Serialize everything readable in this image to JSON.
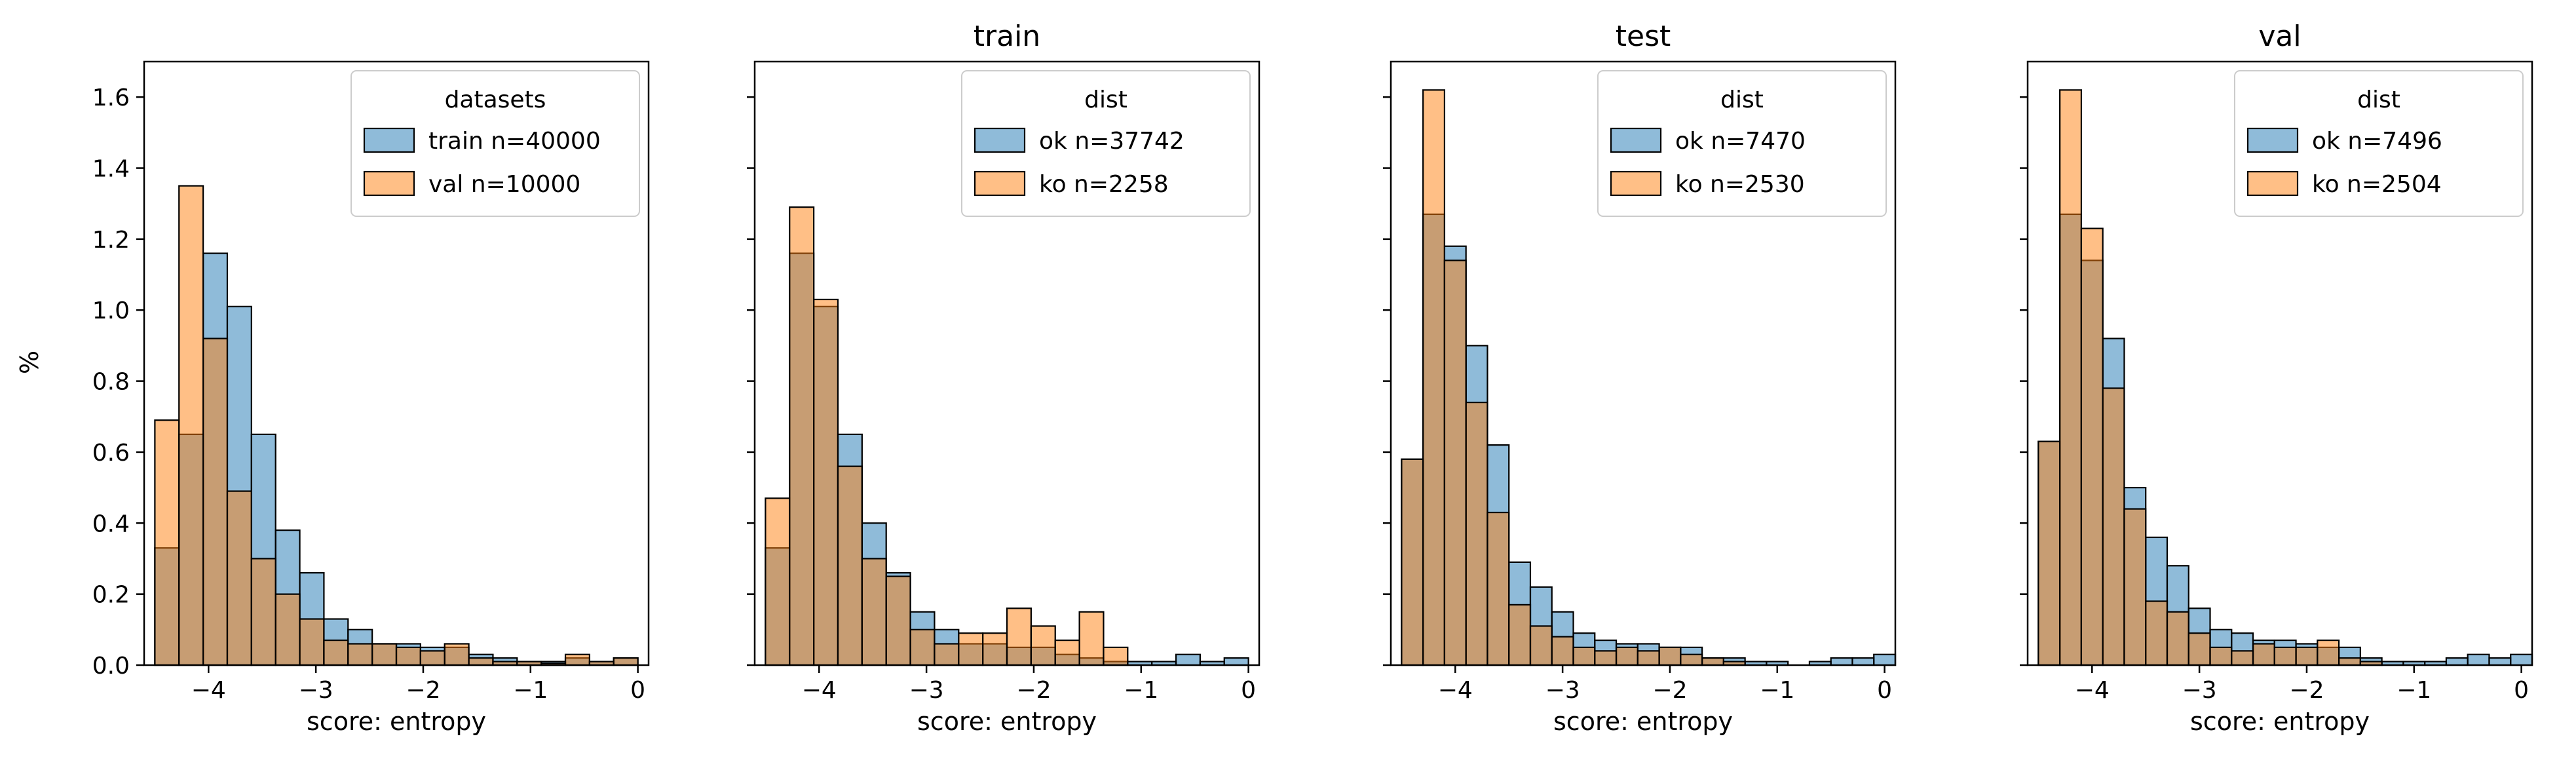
{
  "ylabel": "%",
  "xlabel": "score: entropy",
  "colors": {
    "blue": "#1f77b4",
    "orange": "#ff7f0e"
  },
  "chart_data": [
    {
      "type": "bar",
      "title": "",
      "xlabel": "score: entropy",
      "ylabel": "%",
      "xlim": [
        -4.6,
        0.1
      ],
      "ylim": [
        0,
        1.7
      ],
      "xticks": [
        -4,
        -3,
        -2,
        -1,
        0
      ],
      "yticks": [
        0.0,
        0.2,
        0.4,
        0.6,
        0.8,
        1.0,
        1.2,
        1.4,
        1.6
      ],
      "legend": {
        "title": "datasets",
        "position": "top-right"
      },
      "bin_width": 0.225,
      "series": [
        {
          "name": "train n=40000",
          "color": "#1f77b4",
          "bins": [
            [
              -4.5,
              0.33
            ],
            [
              -4.275,
              0.65
            ],
            [
              -4.05,
              1.16
            ],
            [
              -3.825,
              1.01
            ],
            [
              -3.6,
              0.65
            ],
            [
              -3.375,
              0.38
            ],
            [
              -3.15,
              0.26
            ],
            [
              -2.925,
              0.13
            ],
            [
              -2.7,
              0.1
            ],
            [
              -2.475,
              0.06
            ],
            [
              -2.25,
              0.06
            ],
            [
              -2.025,
              0.05
            ],
            [
              -1.8,
              0.05
            ],
            [
              -1.575,
              0.03
            ],
            [
              -1.35,
              0.02
            ],
            [
              -1.125,
              0.01
            ],
            [
              -0.9,
              0.01
            ],
            [
              -0.675,
              0.02
            ],
            [
              -0.45,
              0.01
            ],
            [
              -0.225,
              0.02
            ]
          ]
        },
        {
          "name": "val n=10000",
          "color": "#ff7f0e",
          "bins": [
            [
              -4.5,
              0.69
            ],
            [
              -4.275,
              1.35
            ],
            [
              -4.05,
              0.92
            ],
            [
              -3.825,
              0.49
            ],
            [
              -3.6,
              0.3
            ],
            [
              -3.375,
              0.2
            ],
            [
              -3.15,
              0.13
            ],
            [
              -2.925,
              0.07
            ],
            [
              -2.7,
              0.06
            ],
            [
              -2.475,
              0.06
            ],
            [
              -2.25,
              0.05
            ],
            [
              -2.025,
              0.04
            ],
            [
              -1.8,
              0.06
            ],
            [
              -1.575,
              0.02
            ],
            [
              -1.35,
              0.01
            ],
            [
              -1.125,
              0.01
            ],
            [
              -0.9,
              0.005
            ],
            [
              -0.675,
              0.03
            ],
            [
              -0.45,
              0.01
            ],
            [
              -0.225,
              0.02
            ]
          ]
        }
      ]
    },
    {
      "type": "bar",
      "title": "train",
      "xlabel": "score: entropy",
      "xlim": [
        -4.6,
        0.1
      ],
      "ylim": [
        0,
        1.7
      ],
      "xticks": [
        -4,
        -3,
        -2,
        -1,
        0
      ],
      "legend": {
        "title": "dist",
        "position": "top-right"
      },
      "bin_width": 0.225,
      "series": [
        {
          "name": "ok n=37742",
          "color": "#1f77b4",
          "bins": [
            [
              -4.5,
              0.33
            ],
            [
              -4.275,
              1.16
            ],
            [
              -4.05,
              1.01
            ],
            [
              -3.825,
              0.65
            ],
            [
              -3.6,
              0.4
            ],
            [
              -3.375,
              0.26
            ],
            [
              -3.15,
              0.15
            ],
            [
              -2.925,
              0.1
            ],
            [
              -2.7,
              0.06
            ],
            [
              -2.475,
              0.06
            ],
            [
              -2.25,
              0.05
            ],
            [
              -2.025,
              0.05
            ],
            [
              -1.8,
              0.03
            ],
            [
              -1.575,
              0.02
            ],
            [
              -1.35,
              0.01
            ],
            [
              -1.125,
              0.01
            ],
            [
              -0.9,
              0.01
            ],
            [
              -0.675,
              0.03
            ],
            [
              -0.45,
              0.01
            ],
            [
              -0.225,
              0.02
            ]
          ]
        },
        {
          "name": "ko n=2258",
          "color": "#ff7f0e",
          "bins": [
            [
              -4.5,
              0.47
            ],
            [
              -4.275,
              1.29
            ],
            [
              -4.05,
              1.03
            ],
            [
              -3.825,
              0.56
            ],
            [
              -3.6,
              0.3
            ],
            [
              -3.375,
              0.25
            ],
            [
              -3.15,
              0.1
            ],
            [
              -2.925,
              0.06
            ],
            [
              -2.7,
              0.09
            ],
            [
              -2.475,
              0.09
            ],
            [
              -2.25,
              0.16
            ],
            [
              -2.025,
              0.11
            ],
            [
              -1.8,
              0.07
            ],
            [
              -1.575,
              0.15
            ],
            [
              -1.35,
              0.05
            ],
            [
              -1.125,
              0.0
            ],
            [
              -0.9,
              0.0
            ],
            [
              -0.675,
              0.0
            ],
            [
              -0.45,
              0.0
            ],
            [
              -0.225,
              0.0
            ]
          ]
        }
      ]
    },
    {
      "type": "bar",
      "title": "test",
      "xlabel": "score: entropy",
      "xlim": [
        -4.6,
        0.1
      ],
      "ylim": [
        0,
        1.7
      ],
      "xticks": [
        -4,
        -3,
        -2,
        -1,
        0
      ],
      "legend": {
        "title": "dist",
        "position": "top-right"
      },
      "bin_width": 0.2,
      "series": [
        {
          "name": "ok n=7470",
          "color": "#1f77b4",
          "bins": [
            [
              -4.5,
              0.58
            ],
            [
              -4.3,
              1.27
            ],
            [
              -4.1,
              1.18
            ],
            [
              -3.9,
              0.9
            ],
            [
              -3.7,
              0.62
            ],
            [
              -3.5,
              0.29
            ],
            [
              -3.3,
              0.22
            ],
            [
              -3.1,
              0.15
            ],
            [
              -2.9,
              0.09
            ],
            [
              -2.7,
              0.07
            ],
            [
              -2.5,
              0.06
            ],
            [
              -2.3,
              0.06
            ],
            [
              -2.1,
              0.05
            ],
            [
              -1.9,
              0.05
            ],
            [
              -1.7,
              0.02
            ],
            [
              -1.5,
              0.02
            ],
            [
              -1.3,
              0.01
            ],
            [
              -1.1,
              0.01
            ],
            [
              -0.9,
              0.0
            ],
            [
              -0.7,
              0.01
            ],
            [
              -0.5,
              0.02
            ],
            [
              -0.3,
              0.02
            ],
            [
              -0.1,
              0.03
            ]
          ]
        },
        {
          "name": "ko n=2530",
          "color": "#ff7f0e",
          "bins": [
            [
              -4.5,
              0.58
            ],
            [
              -4.3,
              1.62
            ],
            [
              -4.1,
              1.14
            ],
            [
              -3.9,
              0.74
            ],
            [
              -3.7,
              0.43
            ],
            [
              -3.5,
              0.17
            ],
            [
              -3.3,
              0.11
            ],
            [
              -3.1,
              0.08
            ],
            [
              -2.9,
              0.05
            ],
            [
              -2.7,
              0.04
            ],
            [
              -2.5,
              0.05
            ],
            [
              -2.3,
              0.04
            ],
            [
              -2.1,
              0.05
            ],
            [
              -1.9,
              0.03
            ],
            [
              -1.7,
              0.02
            ],
            [
              -1.5,
              0.01
            ],
            [
              -1.3,
              0.0
            ],
            [
              -1.1,
              0.0
            ],
            [
              -0.9,
              0.0
            ],
            [
              -0.7,
              0.0
            ],
            [
              -0.5,
              0.0
            ],
            [
              -0.3,
              0.0
            ],
            [
              -0.1,
              0.0
            ]
          ]
        }
      ]
    },
    {
      "type": "bar",
      "title": "val",
      "xlabel": "score: entropy",
      "xlim": [
        -4.6,
        0.1
      ],
      "ylim": [
        0,
        1.7
      ],
      "xticks": [
        -4,
        -3,
        -2,
        -1,
        0
      ],
      "legend": {
        "title": "dist",
        "position": "top-right"
      },
      "bin_width": 0.2,
      "series": [
        {
          "name": "ok n=7496",
          "color": "#1f77b4",
          "bins": [
            [
              -4.5,
              0.63
            ],
            [
              -4.3,
              1.27
            ],
            [
              -4.1,
              1.14
            ],
            [
              -3.9,
              0.92
            ],
            [
              -3.7,
              0.5
            ],
            [
              -3.5,
              0.36
            ],
            [
              -3.3,
              0.28
            ],
            [
              -3.1,
              0.16
            ],
            [
              -2.9,
              0.1
            ],
            [
              -2.7,
              0.09
            ],
            [
              -2.5,
              0.07
            ],
            [
              -2.3,
              0.07
            ],
            [
              -2.1,
              0.06
            ],
            [
              -1.9,
              0.05
            ],
            [
              -1.7,
              0.05
            ],
            [
              -1.5,
              0.02
            ],
            [
              -1.3,
              0.01
            ],
            [
              -1.1,
              0.01
            ],
            [
              -0.9,
              0.01
            ],
            [
              -0.7,
              0.02
            ],
            [
              -0.5,
              0.03
            ],
            [
              -0.3,
              0.02
            ],
            [
              -0.1,
              0.03
            ]
          ]
        },
        {
          "name": "ko n=2504",
          "color": "#ff7f0e",
          "bins": [
            [
              -4.5,
              0.63
            ],
            [
              -4.3,
              1.62
            ],
            [
              -4.1,
              1.23
            ],
            [
              -3.9,
              0.78
            ],
            [
              -3.7,
              0.44
            ],
            [
              -3.5,
              0.18
            ],
            [
              -3.3,
              0.15
            ],
            [
              -3.1,
              0.09
            ],
            [
              -2.9,
              0.05
            ],
            [
              -2.7,
              0.04
            ],
            [
              -2.5,
              0.06
            ],
            [
              -2.3,
              0.05
            ],
            [
              -2.1,
              0.05
            ],
            [
              -1.9,
              0.07
            ],
            [
              -1.7,
              0.02
            ],
            [
              -1.5,
              0.01
            ],
            [
              -1.3,
              0.0
            ],
            [
              -1.1,
              0.0
            ],
            [
              -0.9,
              0.0
            ],
            [
              -0.7,
              0.0
            ],
            [
              -0.5,
              0.0
            ],
            [
              -0.3,
              0.0
            ],
            [
              -0.1,
              0.0
            ]
          ]
        }
      ]
    }
  ]
}
